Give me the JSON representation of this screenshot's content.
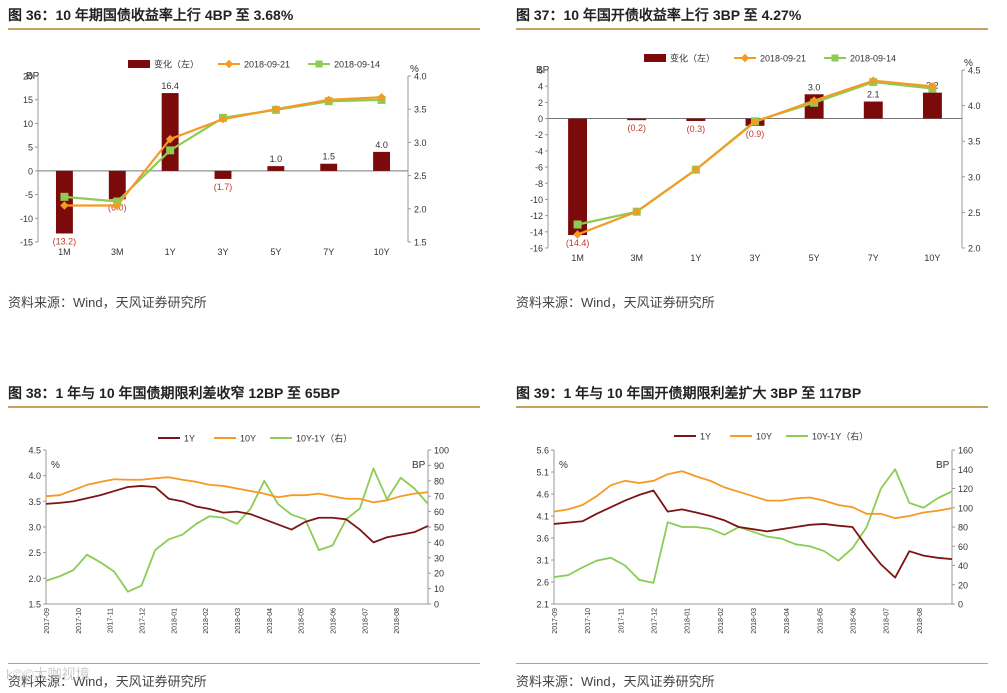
{
  "source_text": "资料来源：Wind，天风证券研究所",
  "watermark": "k©©大咖视境",
  "colors": {
    "bar": "#7b0a0a",
    "orange": "#f59a23",
    "green": "#8ccc55",
    "dark": "#7b1515",
    "neg": "#c0392b",
    "title_line": "#c8a060"
  },
  "chart_data": [
    {
      "id": "fig36",
      "type": "bar",
      "title": "图 36：10 年期国债收益率上行 4BP 至 3.68%",
      "categories": [
        "1M",
        "3M",
        "1Y",
        "3Y",
        "5Y",
        "7Y",
        "10Y"
      ],
      "series": [
        {
          "name": "变化（左）",
          "type": "bar",
          "values": [
            -13.2,
            -6.0,
            16.4,
            -1.7,
            1.0,
            1.5,
            4.0
          ]
        },
        {
          "name": "2018-09-21",
          "type": "line",
          "axis": "right",
          "values": [
            2.05,
            2.05,
            3.05,
            3.35,
            3.5,
            3.64,
            3.68
          ]
        },
        {
          "name": "2018-09-14",
          "type": "line",
          "axis": "right",
          "values": [
            2.18,
            2.11,
            2.88,
            3.37,
            3.49,
            3.62,
            3.64
          ]
        }
      ],
      "bar_labels": [
        "(13.2)",
        "(6.0)",
        "16.4",
        "(1.7)",
        "1.0",
        "1.5",
        "4.0"
      ],
      "ylabel_left": "BP",
      "ylabel_right": "%",
      "ylim_left": [
        -15,
        20
      ],
      "yticks_left": [
        -15,
        -10,
        -5,
        0,
        5,
        10,
        15,
        20
      ],
      "ylim_right": [
        1.5,
        4.0
      ],
      "yticks_right": [
        1.5,
        2.0,
        2.5,
        3.0,
        3.5,
        4.0
      ]
    },
    {
      "id": "fig37",
      "type": "bar",
      "title": "图 37：10 年国开债收益率上行 3BP 至 4.27%",
      "categories": [
        "1M",
        "3M",
        "1Y",
        "3Y",
        "5Y",
        "7Y",
        "10Y"
      ],
      "series": [
        {
          "name": "变化（左）",
          "type": "bar",
          "values": [
            -14.4,
            -0.2,
            -0.3,
            -0.9,
            3.0,
            2.1,
            3.2
          ]
        },
        {
          "name": "2018-09-21",
          "type": "line",
          "axis": "right",
          "values": [
            2.19,
            2.51,
            3.1,
            3.77,
            4.07,
            4.35,
            4.27
          ]
        },
        {
          "name": "2018-09-14",
          "type": "line",
          "axis": "right",
          "values": [
            2.33,
            2.51,
            3.1,
            3.78,
            4.04,
            4.33,
            4.24
          ]
        }
      ],
      "bar_labels": [
        "(14.4)",
        "(0.2)",
        "(0.3)",
        "(0.9)",
        "3.0",
        "2.1",
        "3.2"
      ],
      "ylabel_left": "BP",
      "ylabel_right": "%",
      "ylim_left": [
        -16,
        6
      ],
      "yticks_left": [
        -16,
        -14,
        -12,
        -10,
        -8,
        -6,
        -4,
        -2,
        0,
        2,
        4,
        6
      ],
      "ylim_right": [
        2.0,
        4.5
      ],
      "yticks_right": [
        2.0,
        2.5,
        3.0,
        3.5,
        4.0,
        4.5
      ]
    },
    {
      "id": "fig38",
      "type": "line",
      "title": "图 38：1 年与 10 年国债期限利差收窄 12BP 至 65BP",
      "x_ticks": [
        "2017-09",
        "2017-10",
        "2017-11",
        "2017-12",
        "2018-01",
        "2018-02",
        "2018-03",
        "2018-04",
        "2018-05",
        "2018-06",
        "2018-07",
        "2018-08"
      ],
      "series": [
        {
          "name": "1Y",
          "axis": "left",
          "values": [
            3.45,
            3.47,
            3.5,
            3.56,
            3.62,
            3.7,
            3.78,
            3.8,
            3.78,
            3.55,
            3.5,
            3.4,
            3.35,
            3.28,
            3.3,
            3.25,
            3.15,
            3.05,
            2.95,
            3.1,
            3.18,
            3.18,
            3.15,
            2.95,
            2.7,
            2.8,
            2.85,
            2.9,
            3.02
          ]
        },
        {
          "name": "10Y",
          "axis": "left",
          "values": [
            3.6,
            3.62,
            3.72,
            3.82,
            3.88,
            3.93,
            3.92,
            3.92,
            3.95,
            3.97,
            3.92,
            3.88,
            3.82,
            3.8,
            3.75,
            3.7,
            3.65,
            3.58,
            3.62,
            3.62,
            3.65,
            3.6,
            3.55,
            3.55,
            3.48,
            3.52,
            3.6,
            3.65,
            3.68
          ]
        },
        {
          "name": "10Y-1Y（右）",
          "axis": "right",
          "values": [
            15,
            18,
            22,
            32,
            27,
            21,
            8,
            12,
            35,
            42,
            45,
            52,
            57,
            56,
            52,
            62,
            80,
            65,
            58,
            55,
            35,
            38,
            55,
            62,
            88,
            68,
            82,
            75,
            65
          ]
        }
      ],
      "ylabel_left": "%",
      "ylabel_right": "BP",
      "ylim_left": [
        1.5,
        4.5
      ],
      "yticks_left": [
        1.5,
        2.0,
        2.5,
        3.0,
        3.5,
        4.0,
        4.5
      ],
      "ylim_right": [
        0,
        100
      ],
      "yticks_right": [
        0,
        10,
        20,
        30,
        40,
        50,
        60,
        70,
        80,
        90,
        100
      ]
    },
    {
      "id": "fig39",
      "type": "line",
      "title": "图 39：1 年与 10 年国开债期限利差扩大 3BP 至 117BP",
      "x_ticks": [
        "2017-09",
        "2017-10",
        "2017-11",
        "2017-12",
        "2018-01",
        "2018-02",
        "2018-03",
        "2018-04",
        "2018-05",
        "2018-06",
        "2018-07",
        "2018-08"
      ],
      "series": [
        {
          "name": "1Y",
          "axis": "left",
          "values": [
            3.92,
            3.95,
            3.98,
            4.15,
            4.3,
            4.45,
            4.58,
            4.68,
            4.2,
            4.25,
            4.18,
            4.1,
            4.0,
            3.85,
            3.8,
            3.75,
            3.8,
            3.85,
            3.9,
            3.92,
            3.88,
            3.85,
            3.4,
            3.0,
            2.7,
            3.3,
            3.2,
            3.15,
            3.12
          ]
        },
        {
          "name": "10Y",
          "axis": "left",
          "values": [
            4.2,
            4.25,
            4.35,
            4.55,
            4.8,
            4.9,
            4.85,
            4.9,
            5.05,
            5.12,
            5.0,
            4.9,
            4.75,
            4.65,
            4.55,
            4.45,
            4.45,
            4.5,
            4.52,
            4.45,
            4.35,
            4.3,
            4.15,
            4.15,
            4.05,
            4.1,
            4.18,
            4.22,
            4.28
          ]
        },
        {
          "name": "10Y-1Y（右）",
          "axis": "right",
          "values": [
            28,
            30,
            38,
            45,
            48,
            40,
            25,
            22,
            85,
            80,
            80,
            78,
            72,
            80,
            75,
            70,
            68,
            62,
            60,
            55,
            45,
            58,
            80,
            120,
            140,
            105,
            100,
            110,
            117
          ]
        }
      ],
      "ylabel_left": "%",
      "ylabel_right": "BP",
      "ylim_left": [
        2.1,
        5.6
      ],
      "yticks_left": [
        2.1,
        2.6,
        3.1,
        3.6,
        4.1,
        4.6,
        5.1,
        5.6
      ],
      "ylim_right": [
        0,
        160
      ],
      "yticks_right": [
        0,
        20,
        40,
        60,
        80,
        100,
        120,
        140,
        160
      ]
    }
  ]
}
